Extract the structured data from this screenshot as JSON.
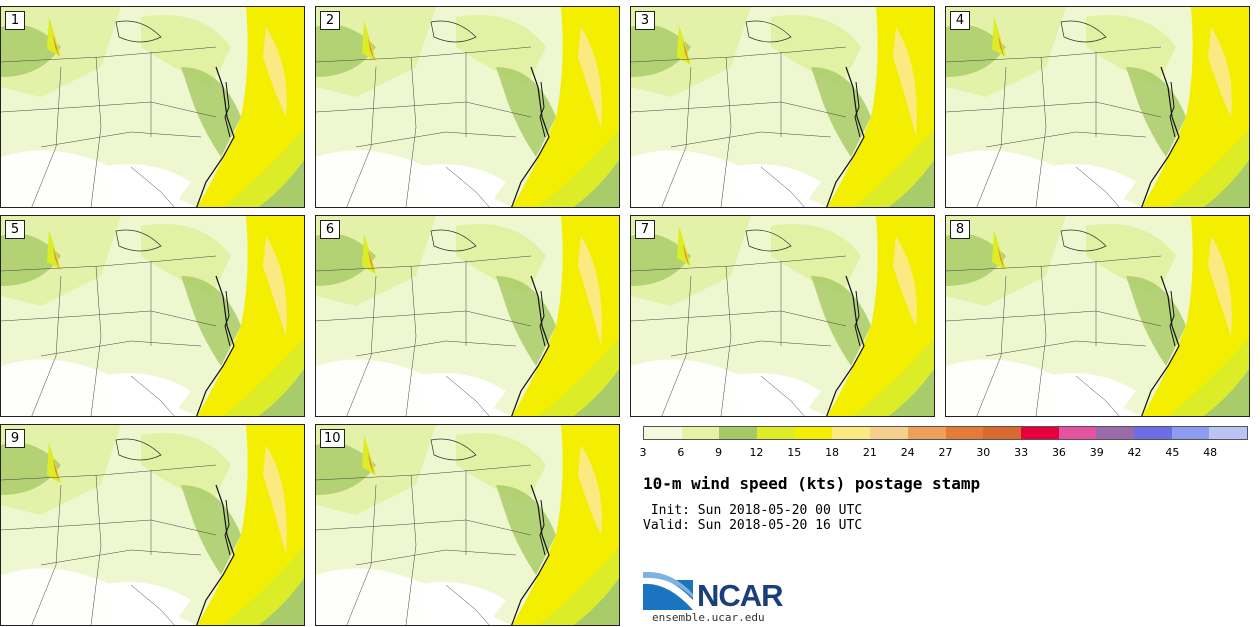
{
  "panels": [
    {
      "label": "1"
    },
    {
      "label": "2"
    },
    {
      "label": "3"
    },
    {
      "label": "4"
    },
    {
      "label": "5"
    },
    {
      "label": "6"
    },
    {
      "label": "7"
    },
    {
      "label": "8"
    },
    {
      "label": "9"
    },
    {
      "label": "10"
    }
  ],
  "colorbar": {
    "ticks": [
      "3",
      "6",
      "9",
      "12",
      "15",
      "18",
      "21",
      "24",
      "27",
      "30",
      "33",
      "36",
      "39",
      "42",
      "45",
      "48"
    ],
    "colors": [
      "#f3f9dc",
      "#e4f3a6",
      "#a5c965",
      "#dcec27",
      "#f4ee00",
      "#fbe982",
      "#f5d08c",
      "#ee9f58",
      "#e57b38",
      "#d96a2e",
      "#e8003c",
      "#e3539f",
      "#9b6ba9",
      "#6d6ee6",
      "#8c9cf3",
      "#b9c4f4"
    ]
  },
  "title": "10-m wind speed (kts) postage stamp",
  "init_text": " Init: Sun 2018-05-20 00 UTC",
  "valid_text": "Valid: Sun 2018-05-20 16 UTC",
  "logo_text": "NCAR",
  "site": "ensemble.ucar.edu"
}
